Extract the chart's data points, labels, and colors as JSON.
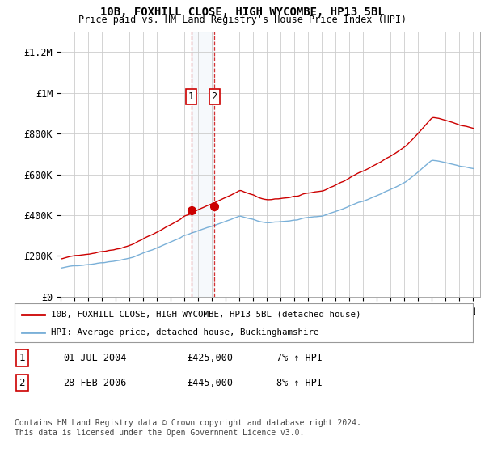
{
  "title_line1": "10B, FOXHILL CLOSE, HIGH WYCOMBE, HP13 5BL",
  "title_line2": "Price paid vs. HM Land Registry's House Price Index (HPI)",
  "y_ticks": [
    0,
    200000,
    400000,
    600000,
    800000,
    1000000,
    1200000
  ],
  "y_tick_labels": [
    "£0",
    "£200K",
    "£400K",
    "£600K",
    "£800K",
    "£1M",
    "£1.2M"
  ],
  "transaction1": {
    "date_num": 2004.5,
    "price": 425000,
    "label": "1"
  },
  "transaction2": {
    "date_num": 2006.17,
    "price": 445000,
    "label": "2"
  },
  "legend_line1": "10B, FOXHILL CLOSE, HIGH WYCOMBE, HP13 5BL (detached house)",
  "legend_line2": "HPI: Average price, detached house, Buckinghamshire",
  "table_row1": [
    "1",
    "01-JUL-2004",
    "£425,000",
    "7% ↑ HPI"
  ],
  "table_row2": [
    "2",
    "28-FEB-2006",
    "£445,000",
    "8% ↑ HPI"
  ],
  "footnote": "Contains HM Land Registry data © Crown copyright and database right 2024.\nThis data is licensed under the Open Government Licence v3.0.",
  "hpi_color": "#7ab0d8",
  "price_color": "#cc0000",
  "vline_color": "#cc0000",
  "bg_color": "#ffffff",
  "grid_color": "#cccccc",
  "highlight_color": "#dce8f5"
}
